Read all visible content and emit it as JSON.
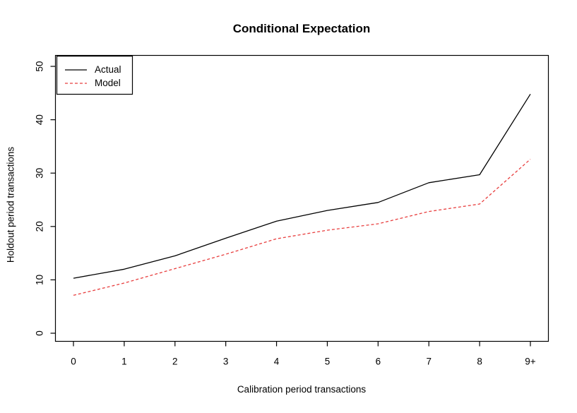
{
  "chart_data": {
    "type": "line",
    "title": "Conditional Expectation",
    "xlabel": "Calibration period transactions",
    "ylabel": "Holdout period transactions",
    "categories": [
      "0",
      "1",
      "2",
      "3",
      "4",
      "5",
      "6",
      "7",
      "8",
      "9+"
    ],
    "series": [
      {
        "name": "Actual",
        "color": "#000000",
        "style": "solid",
        "values": [
          10.3,
          12.0,
          14.5,
          17.8,
          21.0,
          23.0,
          24.5,
          28.2,
          29.7,
          44.8
        ]
      },
      {
        "name": "Model",
        "color": "#e83e3e",
        "style": "dashed",
        "values": [
          7.1,
          9.4,
          12.1,
          14.8,
          17.7,
          19.3,
          20.5,
          22.8,
          24.2,
          32.6
        ]
      }
    ],
    "yticks": [
      0,
      10,
      20,
      30,
      40,
      50
    ],
    "ylim": [
      0,
      52
    ],
    "grid": false,
    "legend_position": "top-left",
    "frame_color": "#000000",
    "background_color": "#ffffff"
  }
}
